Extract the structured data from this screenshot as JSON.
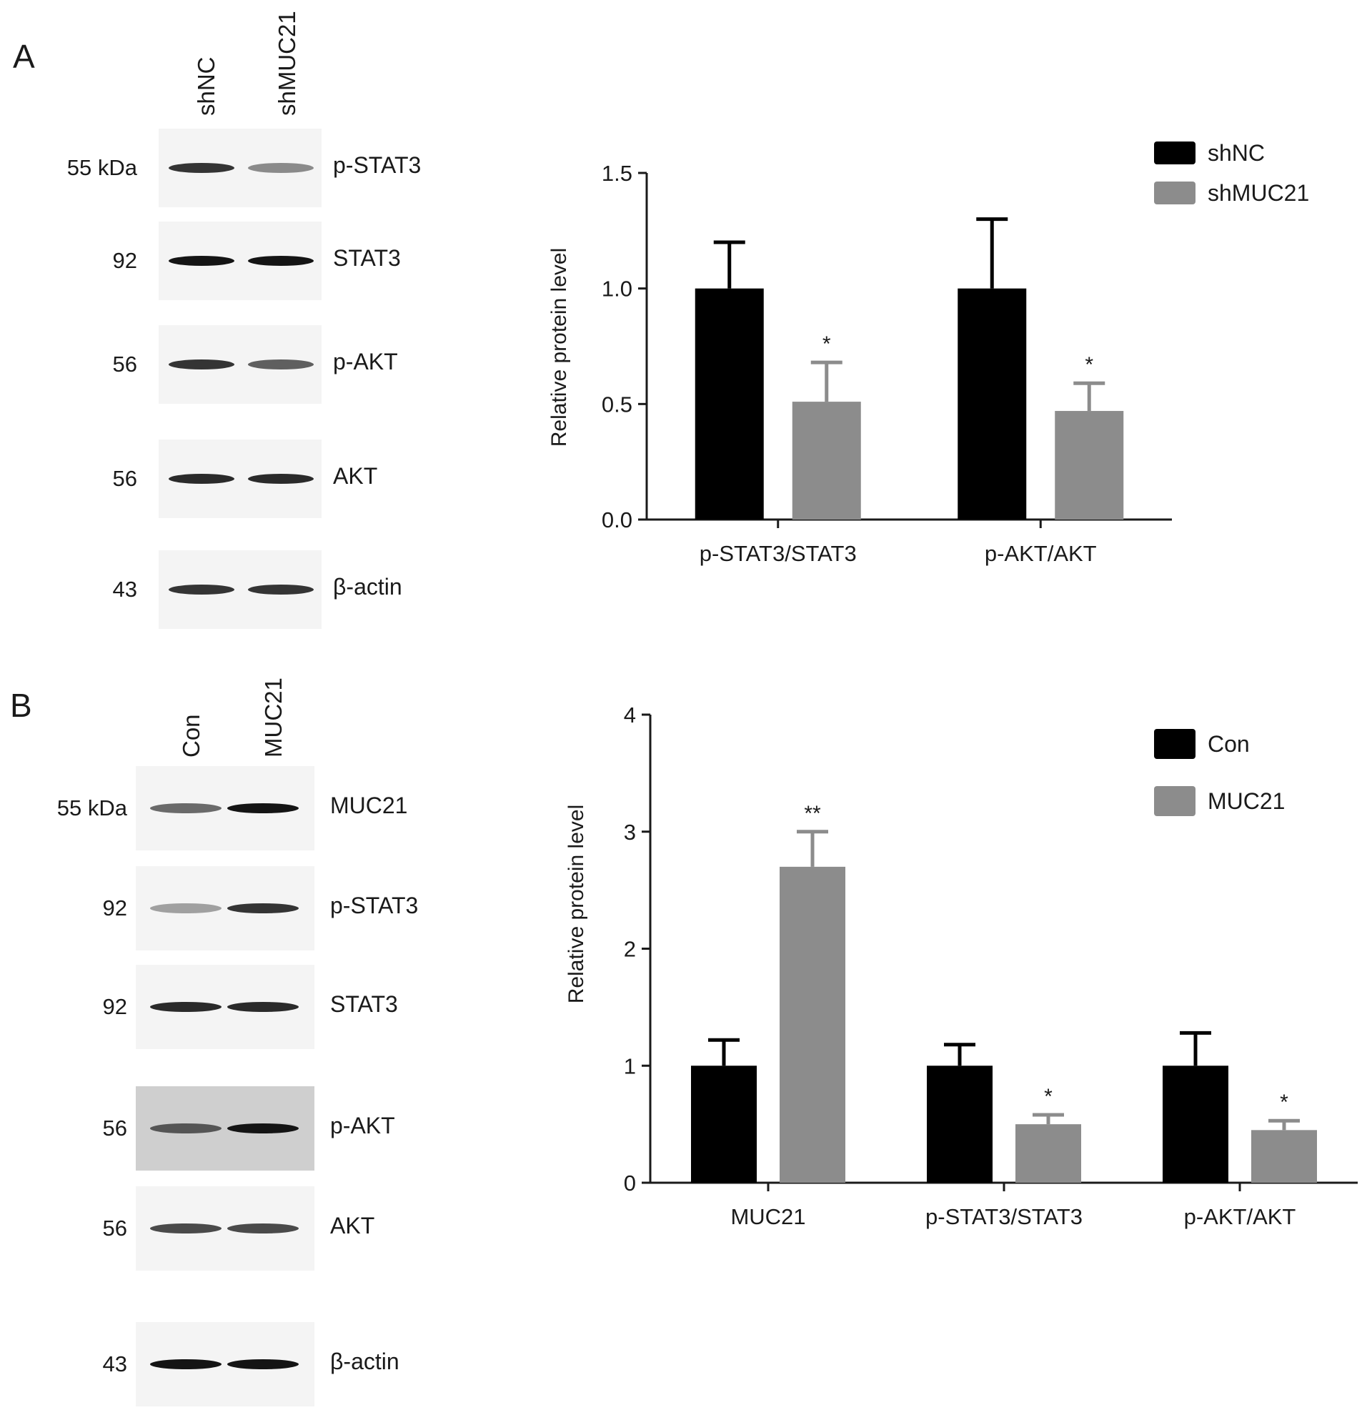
{
  "panel_a": {
    "letter": "A",
    "lanes": [
      "shNC",
      "shMUC21"
    ],
    "blots": [
      {
        "mw": "55 kDa",
        "protein": "p-STAT3",
        "intensity": [
          0.85,
          0.45
        ]
      },
      {
        "mw": "92",
        "protein": "STAT3",
        "intensity": [
          1.0,
          1.0
        ]
      },
      {
        "mw": "56",
        "protein": "p-AKT",
        "intensity": [
          0.85,
          0.65
        ]
      },
      {
        "mw": "56",
        "protein": "AKT",
        "intensity": [
          0.9,
          0.9
        ]
      },
      {
        "mw": "43",
        "protein": "β-actin",
        "intensity": [
          0.85,
          0.85
        ]
      }
    ]
  },
  "panel_b": {
    "letter": "B",
    "lanes": [
      "Con",
      "MUC21"
    ],
    "blots": [
      {
        "mw": "55 kDa",
        "protein": "MUC21",
        "intensity": [
          0.6,
          1.0
        ]
      },
      {
        "mw": "92",
        "protein": "p-STAT3",
        "intensity": [
          0.35,
          0.85
        ]
      },
      {
        "mw": "92",
        "protein": "STAT3",
        "intensity": [
          0.9,
          0.9
        ]
      },
      {
        "mw": "56",
        "protein": "p-AKT",
        "intensity": [
          0.7,
          1.0
        ]
      },
      {
        "mw": "56",
        "protein": "AKT",
        "intensity": [
          0.75,
          0.75
        ]
      },
      {
        "mw": "43",
        "protein": "β-actin",
        "intensity": [
          1.0,
          1.0
        ]
      }
    ]
  },
  "chart_data": [
    {
      "type": "bar",
      "categories": [
        "p-STAT3/STAT3",
        "p-AKT/AKT"
      ],
      "series": [
        {
          "name": "shNC",
          "values": [
            1.0,
            1.0
          ],
          "errors": [
            0.2,
            0.3
          ],
          "color": "#000000"
        },
        {
          "name": "shMUC21",
          "values": [
            0.51,
            0.47
          ],
          "errors": [
            0.17,
            0.12
          ],
          "color": "#8c8c8c"
        }
      ],
      "significance": [
        "*",
        "*"
      ],
      "ylabel": "Relative protein level",
      "ylim": [
        0,
        1.5
      ],
      "yticks": [
        "0.0",
        "0.5",
        "1.0",
        "1.5"
      ],
      "legend_position": "top-right"
    },
    {
      "type": "bar",
      "categories": [
        "MUC21",
        "p-STAT3/STAT3",
        "p-AKT/AKT"
      ],
      "series": [
        {
          "name": "Con",
          "values": [
            1.0,
            1.0,
            1.0
          ],
          "errors": [
            0.22,
            0.18,
            0.28
          ],
          "color": "#000000"
        },
        {
          "name": "MUC21",
          "values": [
            2.7,
            0.5,
            0.45
          ],
          "errors": [
            0.3,
            0.08,
            0.08
          ],
          "color": "#8c8c8c"
        }
      ],
      "significance": [
        "**",
        "*",
        "*"
      ],
      "ylabel": "Relative protein level",
      "ylim": [
        0,
        4
      ],
      "yticks": [
        "0",
        "1",
        "2",
        "3",
        "4"
      ],
      "legend_position": "top-right"
    }
  ]
}
